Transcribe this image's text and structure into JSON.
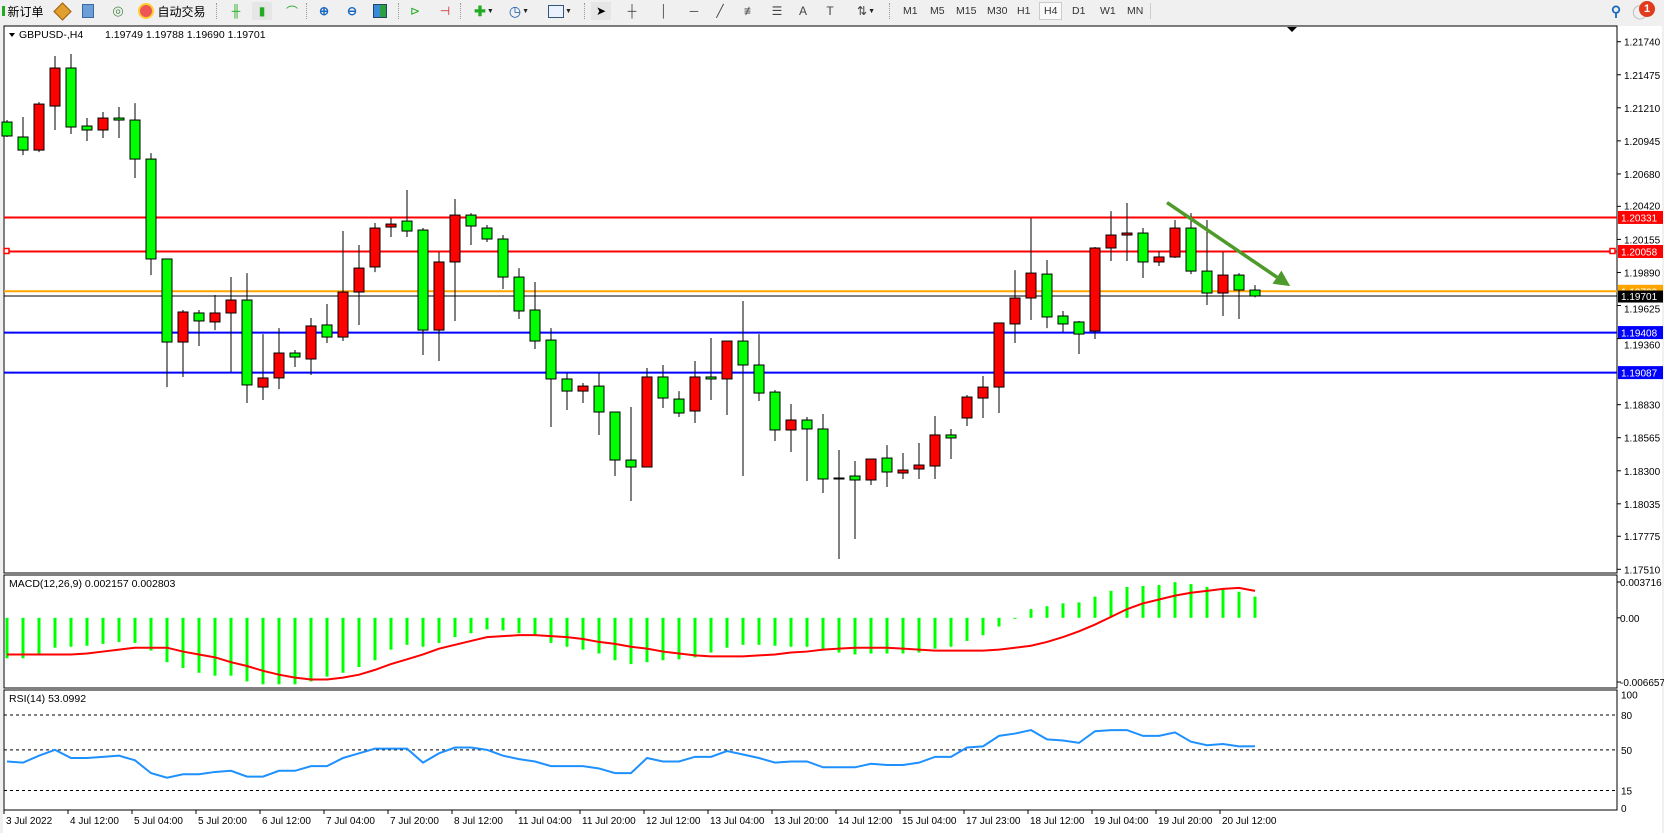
{
  "toolbar": {
    "new_order": "新订单",
    "auto_trading": "自动交易",
    "timeframes": [
      "M1",
      "M5",
      "M15",
      "M30",
      "H1",
      "H4",
      "D1",
      "W1",
      "MN"
    ],
    "active_timeframe": "H4",
    "notification_count": "1",
    "icons": [
      "new-order-icon",
      "market-watch-icon",
      "navigator-icon",
      "signals-icon",
      "auto-trading-icon",
      "bar-chart-icon",
      "candlestick-icon",
      "line-chart-icon",
      "zoom-in-icon",
      "zoom-out-icon",
      "tile-windows-icon",
      "auto-scroll-icon",
      "chart-shift-icon",
      "indicators-icon",
      "periods-icon",
      "templates-icon",
      "cursor-icon",
      "crosshair-icon",
      "vertical-line-icon",
      "horizontal-line-icon",
      "trendline-icon",
      "fibo-channel-icon",
      "fibo-retracement-icon",
      "text-icon",
      "text-label-icon",
      "arrows-icon",
      "search-icon",
      "notification-icon"
    ]
  },
  "chart_data": {
    "type": "candlestick",
    "symbol_label": "GBPUSD-,H4",
    "ohlc_label": "1.19749 1.19788 1.19690 1.19701",
    "bull_color": "#ff0000",
    "bear_color": "#00ff00",
    "ylim": [
      1.1751,
      1.2174
    ],
    "y_ticks": [
      "1.21740",
      "1.21475",
      "1.21210",
      "1.20945",
      "1.20680",
      "1.20420",
      "1.20155",
      "1.19890",
      "1.19625",
      "1.19360",
      "1.18830",
      "1.18565",
      "1.18300",
      "1.18035",
      "1.17775",
      "1.17510"
    ],
    "x_labels": [
      "3 Jul 2022",
      "4 Jul 12:00",
      "5 Jul 04:00",
      "5 Jul 20:00",
      "6 Jul 12:00",
      "7 Jul 04:00",
      "7 Jul 20:00",
      "8 Jul 12:00",
      "11 Jul 04:00",
      "11 Jul 20:00",
      "12 Jul 12:00",
      "13 Jul 04:00",
      "13 Jul 20:00",
      "14 Jul 12:00",
      "15 Jul 04:00",
      "17 Jul 23:00",
      "18 Jul 12:00",
      "19 Jul 04:00",
      "19 Jul 20:00",
      "20 Jul 12:00"
    ],
    "x_label_every_bars": 4,
    "candles_ohlc": [
      [
        1.21096,
        1.21112,
        1.20976,
        1.20984
      ],
      [
        1.20976,
        1.21136,
        1.20831,
        1.20871
      ],
      [
        1.20871,
        1.21256,
        1.20855,
        1.2124
      ],
      [
        1.21224,
        1.21625,
        1.21032,
        1.21529
      ],
      [
        1.21529,
        1.21641,
        1.21,
        1.21056
      ],
      [
        1.21064,
        1.21128,
        1.20944,
        1.21032
      ],
      [
        1.21032,
        1.21176,
        1.20968,
        1.21128
      ],
      [
        1.21128,
        1.21216,
        1.20968,
        1.21112
      ],
      [
        1.21112,
        1.21248,
        1.20647,
        1.20799
      ],
      [
        1.20799,
        1.20847,
        1.19869,
        1.19998
      ],
      [
        1.19998,
        1.19998,
        1.18971,
        1.19332
      ],
      [
        1.19332,
        1.19589,
        1.19052,
        1.19573
      ],
      [
        1.19565,
        1.19589,
        1.193,
        1.19501
      ],
      [
        1.19493,
        1.19709,
        1.19428,
        1.19565
      ],
      [
        1.19565,
        1.19853,
        1.19092,
        1.19669
      ],
      [
        1.19669,
        1.19885,
        1.18843,
        1.18988
      ],
      [
        1.18971,
        1.19396,
        1.18867,
        1.19044
      ],
      [
        1.19044,
        1.19444,
        1.18955,
        1.19244
      ],
      [
        1.19244,
        1.19268,
        1.19132,
        1.19212
      ],
      [
        1.19196,
        1.19525,
        1.19068,
        1.19461
      ],
      [
        1.19469,
        1.19637,
        1.19324,
        1.19372
      ],
      [
        1.19372,
        1.20222,
        1.1934,
        1.19733
      ],
      [
        1.19733,
        1.2011,
        1.19469,
        1.19925
      ],
      [
        1.19934,
        1.20286,
        1.19893,
        1.20246
      ],
      [
        1.20254,
        1.20326,
        1.20174,
        1.20278
      ],
      [
        1.20302,
        1.20551,
        1.20174,
        1.20222
      ],
      [
        1.2023,
        1.20246,
        1.19228,
        1.19428
      ],
      [
        1.19428,
        1.20054,
        1.1918,
        1.19974
      ],
      [
        1.19974,
        1.20479,
        1.19501,
        1.2035
      ],
      [
        1.2035,
        1.20366,
        1.2011,
        1.20262
      ],
      [
        1.20246,
        1.2027,
        1.20134,
        1.20158
      ],
      [
        1.20158,
        1.2019,
        1.19757,
        1.19853
      ],
      [
        1.19853,
        1.19925,
        1.19517,
        1.19581
      ],
      [
        1.19589,
        1.19813,
        1.19276,
        1.1934
      ],
      [
        1.19348,
        1.19444,
        1.18651,
        1.19036
      ],
      [
        1.19036,
        1.19084,
        1.18787,
        1.18939
      ],
      [
        1.18939,
        1.19004,
        1.18843,
        1.18979
      ],
      [
        1.18979,
        1.19084,
        1.18587,
        1.18771
      ],
      [
        1.18771,
        1.18771,
        1.18258,
        1.18386
      ],
      [
        1.18386,
        1.18811,
        1.18058,
        1.1833
      ],
      [
        1.1833,
        1.19124,
        1.1833,
        1.19052
      ],
      [
        1.19052,
        1.19148,
        1.18803,
        1.18883
      ],
      [
        1.18875,
        1.18939,
        1.18731,
        1.18763
      ],
      [
        1.18779,
        1.1918,
        1.18683,
        1.19052
      ],
      [
        1.19052,
        1.19364,
        1.18867,
        1.19036
      ],
      [
        1.19036,
        1.1934,
        1.18747,
        1.1934
      ],
      [
        1.1934,
        1.19661,
        1.18258,
        1.19148
      ],
      [
        1.19148,
        1.19396,
        1.18859,
        1.18923
      ],
      [
        1.18931,
        1.18947,
        1.18539,
        1.18627
      ],
      [
        1.18627,
        1.18835,
        1.1845,
        1.18707
      ],
      [
        1.18707,
        1.18731,
        1.18218,
        1.18635
      ],
      [
        1.18635,
        1.18755,
        1.18122,
        1.18234
      ],
      [
        1.18242,
        1.18466,
        1.17593,
        1.18242
      ],
      [
        1.18258,
        1.18378,
        1.17753,
        1.18226
      ],
      [
        1.18226,
        1.18394,
        1.18186,
        1.18394
      ],
      [
        1.18402,
        1.18506,
        1.1817,
        1.1829
      ],
      [
        1.18282,
        1.18442,
        1.18234,
        1.18306
      ],
      [
        1.18314,
        1.18523,
        1.18234,
        1.18346
      ],
      [
        1.18338,
        1.18739,
        1.18234,
        1.18587
      ],
      [
        1.18587,
        1.18635,
        1.18394,
        1.18563
      ],
      [
        1.18723,
        1.18907,
        1.18659,
        1.18891
      ],
      [
        1.18883,
        1.1906,
        1.18723,
        1.18971
      ],
      [
        1.18971,
        1.19485,
        1.18763,
        1.19485
      ],
      [
        1.19477,
        1.19909,
        1.19324,
        1.19685
      ],
      [
        1.19685,
        1.20326,
        1.19509,
        1.19885
      ],
      [
        1.19877,
        1.1999,
        1.19444,
        1.19533
      ],
      [
        1.19541,
        1.19581,
        1.19412,
        1.19477
      ],
      [
        1.19493,
        1.19501,
        1.19236,
        1.19396
      ],
      [
        1.1942,
        1.20094,
        1.19356,
        1.20086
      ],
      [
        1.20086,
        1.20382,
        1.19982,
        1.2019
      ],
      [
        1.2019,
        1.20447,
        1.19982,
        1.20206
      ],
      [
        1.20206,
        1.20246,
        1.19845,
        1.19974
      ],
      [
        1.19974,
        1.20062,
        1.19942,
        1.20014
      ],
      [
        1.20014,
        1.2031,
        1.20006,
        1.20246
      ],
      [
        1.20246,
        1.20366,
        1.19877,
        1.19901
      ],
      [
        1.19901,
        1.2031,
        1.19629,
        1.19725
      ],
      [
        1.19725,
        1.20054,
        1.19541,
        1.19869
      ],
      [
        1.19869,
        1.19885,
        1.19517,
        1.19749
      ],
      [
        1.19749,
        1.19788,
        1.1969,
        1.19701
      ]
    ],
    "horizontal_lines": [
      {
        "price": "1.20331",
        "color": "#ff0000"
      },
      {
        "price": "1.20058",
        "color": "#ff0000"
      },
      {
        "price": "1.19739",
        "color": "#ffa500"
      },
      {
        "price": "1.19408",
        "color": "#0000ff"
      },
      {
        "price": "1.19087",
        "color": "#0000ff"
      }
    ],
    "bid": {
      "price": "1.19701",
      "color": "#000000"
    },
    "trendline": {
      "color": "#4e9a2a",
      "from": {
        "bar": 73.5,
        "price": 1.2045
      },
      "to": {
        "bar": 81.2,
        "price": 1.1978
      },
      "arrow": true
    },
    "macd": {
      "label": "MACD(12,26,9) 0.002157 0.002803",
      "ylim": [
        -0.006657,
        0.003716
      ],
      "ticks": [
        "0.003716",
        "0.00",
        "-0.006657"
      ],
      "histogram_color": "#00ff00",
      "signal_color": "#ff0000",
      "histogram": [
        -0.0042,
        -0.0042,
        -0.0037,
        -0.0031,
        -0.003,
        -0.0029,
        -0.0027,
        -0.0025,
        -0.0026,
        -0.0034,
        -0.0046,
        -0.0052,
        -0.0057,
        -0.006,
        -0.006,
        -0.0066,
        -0.0069,
        -0.0069,
        -0.0069,
        -0.0066,
        -0.0061,
        -0.0057,
        -0.0051,
        -0.0044,
        -0.0033,
        -0.0028,
        -0.003,
        -0.0026,
        -0.002,
        -0.0016,
        -0.0012,
        -0.0013,
        -0.0016,
        -0.0018,
        -0.0026,
        -0.003,
        -0.0033,
        -0.0037,
        -0.0044,
        -0.0048,
        -0.0046,
        -0.0044,
        -0.0043,
        -0.0041,
        -0.0036,
        -0.0031,
        -0.0028,
        -0.0028,
        -0.0029,
        -0.003,
        -0.003,
        -0.0034,
        -0.0036,
        -0.0038,
        -0.0037,
        -0.0037,
        -0.0037,
        -0.0036,
        -0.0032,
        -0.003,
        -0.0024,
        -0.0018,
        -0.0009,
        -0.0001,
        0.0009,
        0.0012,
        0.0015,
        0.0016,
        0.0022,
        0.0028,
        0.0032,
        0.0033,
        0.0034,
        0.0037,
        0.0035,
        0.0032,
        0.003,
        0.0027,
        0.0022
      ],
      "signal": [
        -0.0038,
        -0.0038,
        -0.0038,
        -0.0038,
        -0.0038,
        -0.0037,
        -0.0035,
        -0.0033,
        -0.0031,
        -0.0031,
        -0.0031,
        -0.0035,
        -0.0038,
        -0.0041,
        -0.0046,
        -0.005,
        -0.0055,
        -0.0059,
        -0.0062,
        -0.0064,
        -0.0064,
        -0.0062,
        -0.0059,
        -0.0054,
        -0.0048,
        -0.0043,
        -0.0038,
        -0.0032,
        -0.0028,
        -0.0024,
        -0.002,
        -0.0019,
        -0.0018,
        -0.0018,
        -0.0019,
        -0.002,
        -0.0022,
        -0.0025,
        -0.0027,
        -0.003,
        -0.0032,
        -0.0035,
        -0.0037,
        -0.0039,
        -0.004,
        -0.004,
        -0.004,
        -0.0039,
        -0.0038,
        -0.0036,
        -0.0035,
        -0.0033,
        -0.0032,
        -0.0031,
        -0.0031,
        -0.0031,
        -0.0032,
        -0.0033,
        -0.0034,
        -0.0034,
        -0.0034,
        -0.0034,
        -0.0033,
        -0.0031,
        -0.0029,
        -0.0025,
        -0.002,
        -0.0014,
        -0.0007,
        0.0001,
        0.0009,
        0.0015,
        0.0019,
        0.0023,
        0.0026,
        0.0028,
        0.003,
        0.0031,
        0.0028
      ]
    },
    "rsi": {
      "label": "RSI(14) 53.0992",
      "ylim": [
        0,
        100
      ],
      "ticks": [
        "100",
        "80",
        "50",
        "15",
        "0"
      ],
      "levels": [
        80,
        50,
        15
      ],
      "color": "#1e90ff",
      "values": [
        40,
        39,
        45,
        50,
        43,
        43,
        44,
        45,
        41,
        30,
        26,
        29,
        29,
        31,
        32,
        27,
        27,
        32,
        32,
        36,
        36,
        43,
        47,
        51,
        51,
        51,
        39,
        47,
        52,
        52,
        50,
        45,
        42,
        40,
        36,
        36,
        36,
        34,
        30,
        30,
        43,
        40,
        40,
        44,
        44,
        49,
        46,
        43,
        39,
        40,
        40,
        35,
        35,
        35,
        38,
        37,
        37,
        39,
        44,
        44,
        52,
        53,
        62,
        64,
        67,
        59,
        58,
        56,
        66,
        67,
        67,
        62,
        62,
        65,
        57,
        54,
        55,
        53,
        53.0992
      ]
    }
  }
}
